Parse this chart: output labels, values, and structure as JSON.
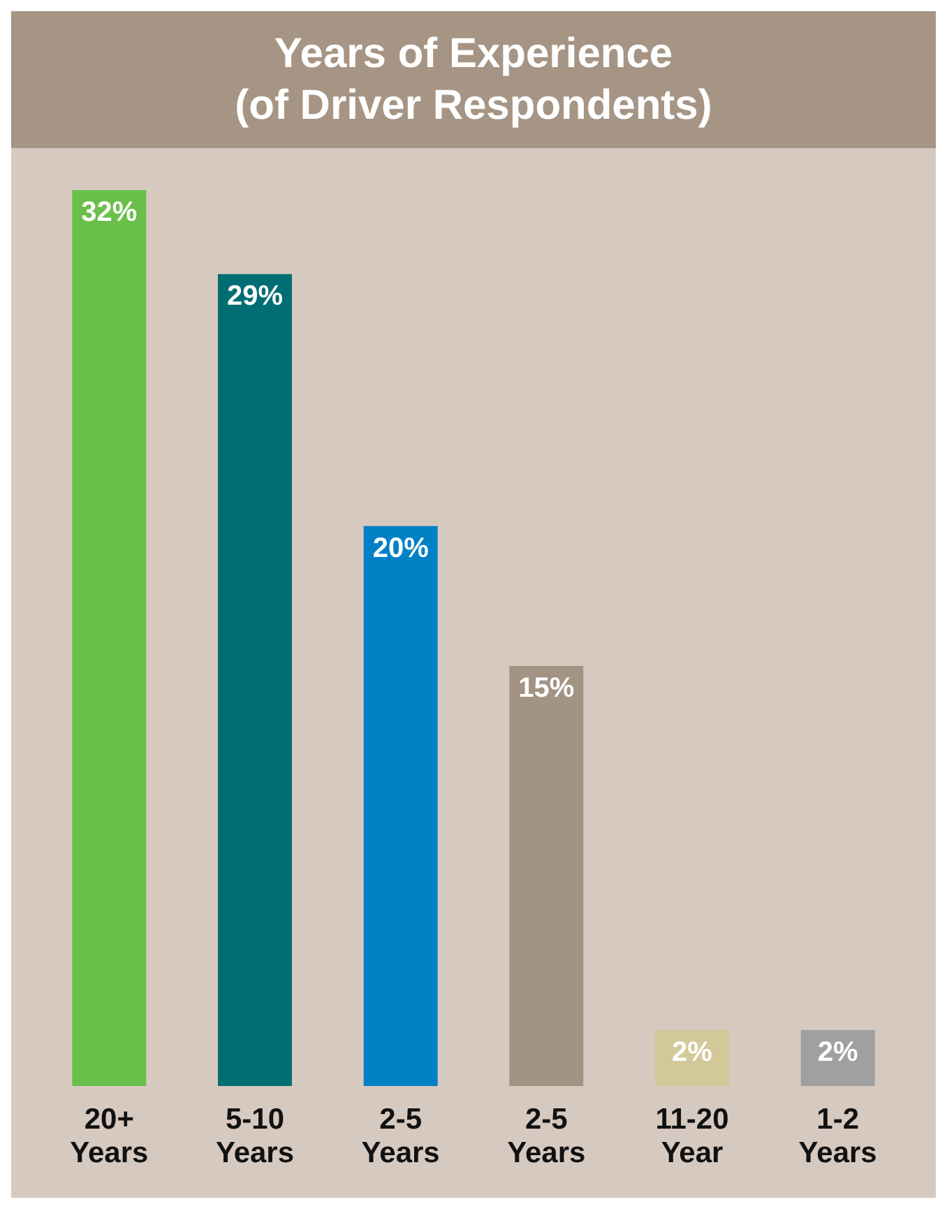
{
  "chart_data": {
    "type": "bar",
    "title": "Years of Experience\n(of Driver Respondents)",
    "categories": [
      "20+\nYears",
      "5-10\nYears",
      "2-5\nYears",
      "2-5\nYears",
      "11-20\nYear",
      "1-2\nYears"
    ],
    "values": [
      32,
      29,
      20,
      15,
      2,
      2
    ],
    "colors": [
      "#6abf4b",
      "#006e73",
      "#0081c6",
      "#a39382",
      "#d3c89a",
      "#a0a0a0"
    ],
    "value_labels": [
      "32%",
      "29%",
      "20%",
      "15%",
      "2%",
      "2%"
    ]
  }
}
